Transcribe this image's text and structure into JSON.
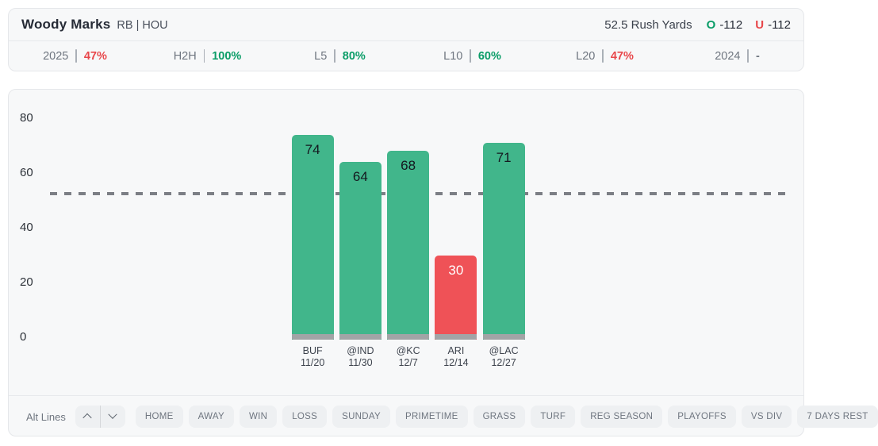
{
  "header": {
    "player_name": "Woody Marks",
    "player_meta": "RB | HOU",
    "line_label": "52.5 Rush Yards",
    "over_label": "O",
    "over_odds": "-112",
    "under_label": "U",
    "under_odds": "-112"
  },
  "stats": [
    {
      "label": "2025",
      "value": "47%",
      "status": "red"
    },
    {
      "label": "H2H",
      "value": "100%",
      "status": "green"
    },
    {
      "label": "L5",
      "value": "80%",
      "status": "green"
    },
    {
      "label": "L10",
      "value": "60%",
      "status": "green"
    },
    {
      "label": "L20",
      "value": "47%",
      "status": "red"
    },
    {
      "label": "2024",
      "value": "-",
      "status": "neutral"
    }
  ],
  "chart_data": {
    "type": "bar",
    "title": "",
    "categories": [
      "BUF",
      "@IND",
      "@KC",
      "ARI",
      "@LAC"
    ],
    "dates": [
      "11/20",
      "11/30",
      "12/7",
      "12/14",
      "12/27"
    ],
    "values": [
      74,
      64,
      68,
      30,
      71
    ],
    "over_under": [
      "over",
      "over",
      "over",
      "under",
      "over"
    ],
    "prop_line": 52.5,
    "yticks": [
      0,
      20,
      40,
      60,
      80
    ],
    "ylim": [
      0,
      87
    ],
    "grid": false,
    "legend": "none"
  },
  "colors": {
    "green_bar": "#41b68b",
    "red_bar": "#ef5257",
    "green_text": "#0b9d68",
    "red_text": "#e8474b",
    "neutral_text": "#6f7680",
    "bar_base_gray": "#a2a4a6",
    "dashed_line": "#7c7f85"
  },
  "filter_bar": {
    "alt_lines_label": "Alt Lines",
    "stepper_icons": [
      "chevron-up-icon",
      "chevron-down-icon"
    ],
    "buttons": [
      "HOME",
      "AWAY",
      "WIN",
      "LOSS",
      "SUNDAY",
      "PRIMETIME",
      "GRASS",
      "TURF",
      "REG SEASON",
      "PLAYOFFS",
      "VS DIV",
      "7 DAYS REST"
    ]
  }
}
